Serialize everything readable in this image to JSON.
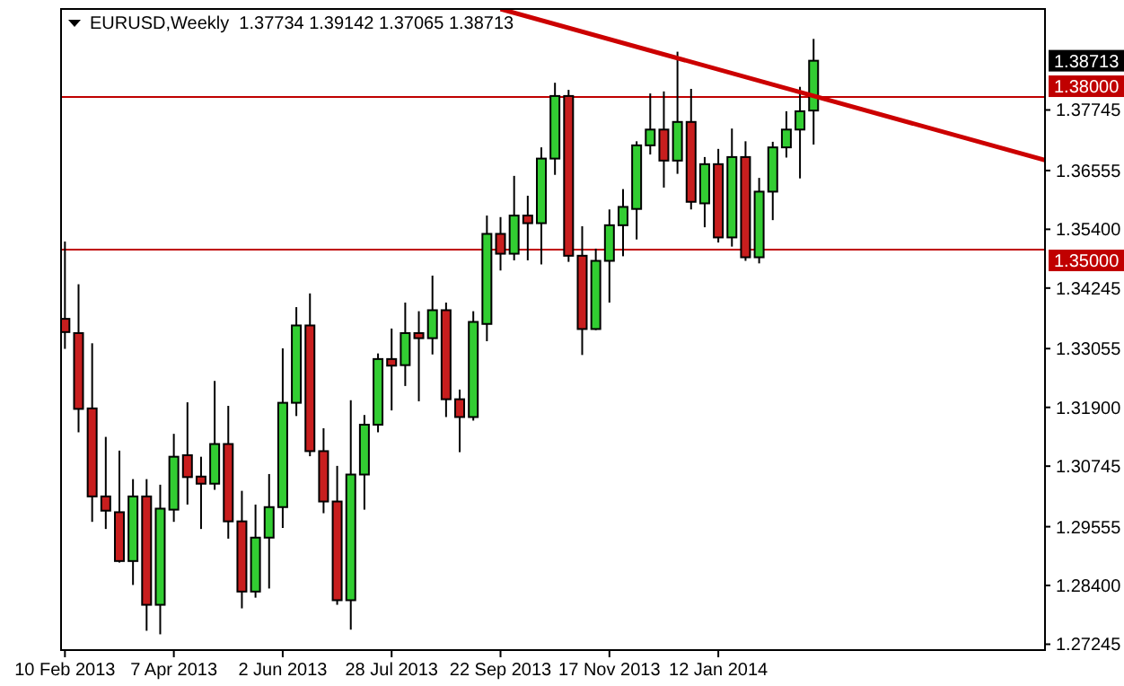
{
  "chart_data": {
    "type": "candlestick",
    "title": "EURUSD,Weekly  1.37734 1.39142 1.37065 1.38713",
    "x": [
      "2013-02-10",
      "2013-02-17",
      "2013-02-24",
      "2013-03-03",
      "2013-03-10",
      "2013-03-17",
      "2013-03-24",
      "2013-03-31",
      "2013-04-07",
      "2013-04-14",
      "2013-04-21",
      "2013-04-28",
      "2013-05-05",
      "2013-05-12",
      "2013-05-19",
      "2013-05-26",
      "2013-06-02",
      "2013-06-09",
      "2013-06-16",
      "2013-06-23",
      "2013-06-30",
      "2013-07-07",
      "2013-07-14",
      "2013-07-21",
      "2013-07-28",
      "2013-08-04",
      "2013-08-11",
      "2013-08-18",
      "2013-08-25",
      "2013-09-01",
      "2013-09-08",
      "2013-09-15",
      "2013-09-22",
      "2013-09-29",
      "2013-10-06",
      "2013-10-13",
      "2013-10-20",
      "2013-10-27",
      "2013-11-03",
      "2013-11-10",
      "2013-11-17",
      "2013-11-24",
      "2013-12-01",
      "2013-12-08",
      "2013-12-15",
      "2013-12-22",
      "2013-12-29",
      "2014-01-05",
      "2014-01-12",
      "2014-01-19",
      "2014-01-26",
      "2014-02-02",
      "2014-02-09",
      "2014-02-16",
      "2014-02-23",
      "2014-03-02"
    ],
    "ohlc": [
      [
        1.3364,
        1.3516,
        1.3305,
        1.3338
      ],
      [
        1.3336,
        1.3432,
        1.3141,
        1.3187
      ],
      [
        1.3188,
        1.3316,
        1.2965,
        1.3015
      ],
      [
        1.3015,
        1.3132,
        1.2951,
        1.2987
      ],
      [
        1.2984,
        1.3105,
        1.2885,
        1.2888
      ],
      [
        1.2888,
        1.3049,
        1.2841,
        1.3015
      ],
      [
        1.3015,
        1.3049,
        1.2751,
        1.2802
      ],
      [
        1.2802,
        1.3038,
        1.2744,
        1.2991
      ],
      [
        1.2989,
        1.3138,
        1.2965,
        1.3093
      ],
      [
        1.3096,
        1.32,
        1.2999,
        1.3053
      ],
      [
        1.3054,
        1.3093,
        1.2951,
        1.304
      ],
      [
        1.304,
        1.3242,
        1.3028,
        1.3118
      ],
      [
        1.3118,
        1.3193,
        1.2932,
        1.2966
      ],
      [
        1.2966,
        1.3026,
        1.2795,
        1.2828
      ],
      [
        1.2828,
        1.2999,
        1.2816,
        1.2934
      ],
      [
        1.2934,
        1.3059,
        1.2834,
        1.2994
      ],
      [
        1.2994,
        1.3306,
        1.2953,
        1.3199
      ],
      [
        1.3199,
        1.3387,
        1.3173,
        1.3351
      ],
      [
        1.3351,
        1.3414,
        1.3094,
        1.3104
      ],
      [
        1.3104,
        1.3149,
        1.2982,
        1.3005
      ],
      [
        1.3005,
        1.3075,
        1.2802,
        1.2811
      ],
      [
        1.2811,
        1.3204,
        1.2753,
        1.3058
      ],
      [
        1.3058,
        1.3175,
        1.2989,
        1.3156
      ],
      [
        1.3156,
        1.3296,
        1.3141,
        1.3285
      ],
      [
        1.3285,
        1.3345,
        1.3184,
        1.3272
      ],
      [
        1.3273,
        1.3396,
        1.3232,
        1.3336
      ],
      [
        1.3336,
        1.3379,
        1.3202,
        1.3326
      ],
      [
        1.3326,
        1.3449,
        1.3294,
        1.3381
      ],
      [
        1.3381,
        1.3396,
        1.3171,
        1.3206
      ],
      [
        1.3206,
        1.3225,
        1.3102,
        1.3171
      ],
      [
        1.3171,
        1.3379,
        1.3164,
        1.3358
      ],
      [
        1.3354,
        1.3567,
        1.332,
        1.3531
      ],
      [
        1.3531,
        1.3564,
        1.3459,
        1.3492
      ],
      [
        1.3492,
        1.3645,
        1.3479,
        1.3567
      ],
      [
        1.3567,
        1.3606,
        1.3479,
        1.3552
      ],
      [
        1.3552,
        1.3701,
        1.3471,
        1.3679
      ],
      [
        1.3679,
        1.3828,
        1.3647,
        1.3802
      ],
      [
        1.3802,
        1.3814,
        1.3476,
        1.3488
      ],
      [
        1.3488,
        1.3546,
        1.3293,
        1.3344
      ],
      [
        1.3344,
        1.3502,
        1.3342,
        1.3478
      ],
      [
        1.3478,
        1.3579,
        1.3396,
        1.3548
      ],
      [
        1.3548,
        1.3619,
        1.3487,
        1.3584
      ],
      [
        1.358,
        1.3713,
        1.352,
        1.3705
      ],
      [
        1.3705,
        1.3807,
        1.3687,
        1.3736
      ],
      [
        1.3736,
        1.3811,
        1.3622,
        1.3675
      ],
      [
        1.3675,
        1.3889,
        1.3649,
        1.3751
      ],
      [
        1.3751,
        1.3816,
        1.3579,
        1.3594
      ],
      [
        1.3591,
        1.3682,
        1.3544,
        1.3668
      ],
      [
        1.3668,
        1.3698,
        1.3514,
        1.3524
      ],
      [
        1.3524,
        1.3738,
        1.3506,
        1.3682
      ],
      [
        1.3682,
        1.3713,
        1.3478,
        1.3485
      ],
      [
        1.3485,
        1.3641,
        1.3473,
        1.3614
      ],
      [
        1.3614,
        1.3712,
        1.3558,
        1.3701
      ],
      [
        1.3701,
        1.3772,
        1.3681,
        1.3736
      ],
      [
        1.3736,
        1.382,
        1.364,
        1.3772
      ],
      [
        1.37734,
        1.39142,
        1.37065,
        1.38713
      ]
    ],
    "series": [
      {
        "type": "line",
        "color": "#cc0000",
        "x": [
          "2013-09-22",
          "2014-06-29"
        ],
        "values": [
          1.3973,
          1.3676
        ]
      }
    ],
    "xlim": [
      "2013-02-08",
      "2014-06-29"
    ],
    "xticks": [
      {
        "value": "2013-02-10",
        "label": "10 Feb 2013"
      },
      {
        "value": "2013-04-07",
        "label": "7 Apr 2013"
      },
      {
        "value": "2013-06-02",
        "label": "2 Jun 2013"
      },
      {
        "value": "2013-07-28",
        "label": "28 Jul 2013"
      },
      {
        "value": "2013-09-22",
        "label": "22 Sep 2013"
      },
      {
        "value": "2013-11-17",
        "label": "17 Nov 2013"
      },
      {
        "value": "2014-01-12",
        "label": "12 Jan 2014"
      }
    ],
    "ylim": [
      1.2713,
      1.3973
    ],
    "yticks": [
      {
        "value": 1.27245,
        "label": "1.27245"
      },
      {
        "value": 1.284,
        "label": "1.28400"
      },
      {
        "value": 1.29555,
        "label": "1.29555"
      },
      {
        "value": 1.30745,
        "label": "1.30745"
      },
      {
        "value": 1.319,
        "label": "1.31900"
      },
      {
        "value": 1.33055,
        "label": "1.33055"
      },
      {
        "value": 1.34245,
        "label": "1.34245"
      },
      {
        "value": 1.354,
        "label": "1.35400"
      },
      {
        "value": 1.36555,
        "label": "1.36555"
      },
      {
        "value": 1.37745,
        "label": "1.37745"
      }
    ],
    "ref_lines": [
      {
        "axis": "y",
        "value": 1.38,
        "label": "1.38000",
        "color": "#c00000"
      },
      {
        "axis": "y",
        "value": 1.35,
        "label": "1.35000",
        "color": "#c00000"
      }
    ],
    "annotations": [
      "1.38713"
    ],
    "grid": false
  }
}
